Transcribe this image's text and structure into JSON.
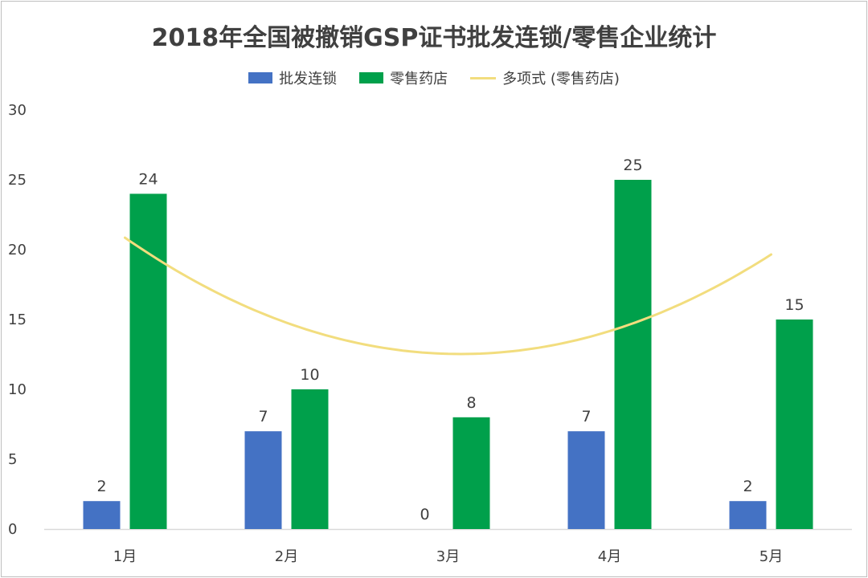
{
  "chart_data": {
    "type": "bar",
    "title": "2018年全国被撤销GSP证书批发连锁/零售企业统计",
    "categories": [
      "1月",
      "2月",
      "3月",
      "4月",
      "5月"
    ],
    "series": [
      {
        "name": "批发连锁",
        "values": [
          2,
          7,
          0,
          7,
          2
        ],
        "color": "#4472C4"
      },
      {
        "name": "零售药店",
        "values": [
          24,
          10,
          8,
          25,
          15
        ],
        "color": "#00A04B"
      }
    ],
    "trendline": {
      "name": "多项式 (零售药店)",
      "order": 2,
      "series": "零售药店",
      "color": "#F2DD7E"
    },
    "ylim": [
      0,
      30
    ],
    "yticks": [
      0,
      5,
      10,
      15,
      20,
      25,
      30
    ],
    "grid": false,
    "legend_position": "top"
  }
}
